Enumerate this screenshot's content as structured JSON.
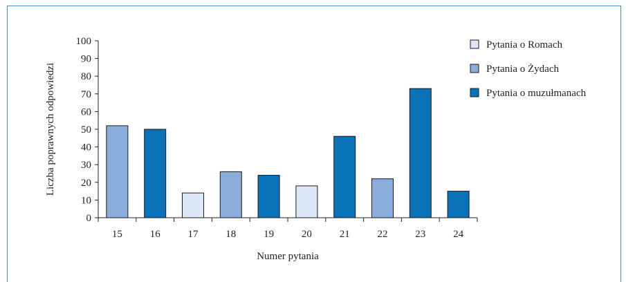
{
  "chart_data": {
    "type": "bar",
    "xlabel": "Numer pytania",
    "ylabel": "Liczba poprawnych odpowiedzi",
    "ylim": [
      0,
      100
    ],
    "yticks": [
      0,
      10,
      20,
      30,
      40,
      50,
      60,
      70,
      80,
      90,
      100
    ],
    "categories": [
      "15",
      "16",
      "17",
      "18",
      "19",
      "20",
      "21",
      "22",
      "23",
      "24"
    ],
    "values": [
      52,
      50,
      14,
      26,
      24,
      18,
      46,
      22,
      73,
      15
    ],
    "groups": [
      "zydzi",
      "muzulmanie",
      "romowie",
      "zydzi",
      "muzulmanie",
      "romowie",
      "muzulmanie",
      "zydzi",
      "muzulmanie",
      "muzulmanie"
    ],
    "series": [
      {
        "key": "romowie",
        "name": "Pytania o Romach",
        "color": "#dce8f7"
      },
      {
        "key": "zydzi",
        "name": "Pytania o Żydach",
        "color": "#8aaddc"
      },
      {
        "key": "muzulmanie",
        "name": "Pytania o muzułmanach",
        "color": "#0a72b8"
      }
    ],
    "legend_position": "top-right",
    "grid": false
  },
  "colors": {
    "frame_border": "#4a8fc0",
    "bar_outline": "#1a1a1a",
    "axis": "#222222"
  }
}
